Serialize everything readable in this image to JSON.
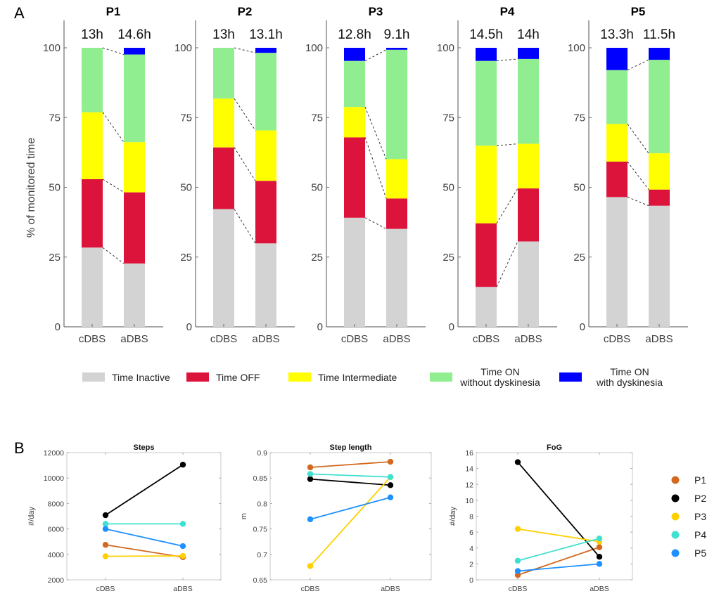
{
  "figure": {
    "panel_a_letter": "A",
    "panel_b_letter": "B"
  },
  "chart_data": [
    {
      "type": "bar",
      "stacked": true,
      "id": "panel-a",
      "ylabel": "% of monitored time",
      "ylim": [
        0,
        100
      ],
      "yticks": [
        0,
        25,
        50,
        75,
        100
      ],
      "categories": [
        "cDBS",
        "aDBS"
      ],
      "segment_order": [
        "Time Inactive",
        "Time OFF",
        "Time Intermediate",
        "Time ON without dyskinesia",
        "Time ON with dyskinesia"
      ],
      "colors": {
        "Time Inactive": "#d3d3d3",
        "Time OFF": "#dc143c",
        "Time Intermediate": "#ffff00",
        "Time ON without dyskinesia": "#90ee90",
        "Time ON with dyskinesia": "#0000ff"
      },
      "legend": [
        {
          "label": "Time Inactive",
          "lines": [
            "Time Inactive"
          ],
          "color": "#d3d3d3"
        },
        {
          "label": "Time OFF",
          "lines": [
            "Time OFF"
          ],
          "color": "#dc143c"
        },
        {
          "label": "Time Intermediate",
          "lines": [
            "Time Intermediate"
          ],
          "color": "#ffff00"
        },
        {
          "label": "Time ON without dyskinesia",
          "lines": [
            "Time ON",
            "without dyskinesia"
          ],
          "color": "#90ee90"
        },
        {
          "label": "Time ON with dyskinesia",
          "lines": [
            "Time ON",
            "with dyskinesia"
          ],
          "color": "#0000ff"
        }
      ],
      "legend_position": "bottom",
      "panels": [
        {
          "title": "P1",
          "hours": [
            "13h",
            "14.6h"
          ],
          "bars": [
            {
              "category": "cDBS",
              "values": [
                28.4,
                24.5,
                24.0,
                23.1,
                0.0
              ]
            },
            {
              "category": "aDBS",
              "values": [
                22.7,
                25.5,
                18.0,
                31.4,
                2.4
              ]
            }
          ]
        },
        {
          "title": "P2",
          "hours": [
            "13h",
            "13.1h"
          ],
          "bars": [
            {
              "category": "cDBS",
              "values": [
                42.2,
                22.1,
                17.5,
                18.2,
                0.0
              ]
            },
            {
              "category": "aDBS",
              "values": [
                29.9,
                22.4,
                18.1,
                27.8,
                1.8
              ]
            }
          ]
        },
        {
          "title": "P3",
          "hours": [
            "12.8h",
            "9.1h"
          ],
          "bars": [
            {
              "category": "cDBS",
              "values": [
                39.1,
                28.8,
                10.9,
                16.5,
                4.7
              ]
            },
            {
              "category": "aDBS",
              "values": [
                35.1,
                10.9,
                14.1,
                39.2,
                0.7
              ]
            }
          ]
        },
        {
          "title": "P4",
          "hours": [
            "14.5h",
            "14h"
          ],
          "bars": [
            {
              "category": "cDBS",
              "values": [
                14.3,
                22.8,
                27.8,
                30.4,
                4.7
              ]
            },
            {
              "category": "aDBS",
              "values": [
                30.6,
                19.0,
                16.0,
                30.4,
                4.0
              ]
            }
          ]
        },
        {
          "title": "P5",
          "hours": [
            "13.3h",
            "11.5h"
          ],
          "bars": [
            {
              "category": "cDBS",
              "values": [
                46.5,
                12.7,
                13.5,
                19.3,
                8.0
              ]
            },
            {
              "category": "aDBS",
              "values": [
                43.4,
                5.8,
                13.0,
                33.5,
                4.3
              ]
            }
          ]
        }
      ]
    },
    {
      "type": "line",
      "id": "steps",
      "title": "Steps",
      "ylabel": "#/day",
      "xlabel": "",
      "categories": [
        "cDBS",
        "aDBS"
      ],
      "ylim": [
        2000,
        12000
      ],
      "yticks": [
        2000,
        4000,
        6000,
        8000,
        10000,
        12000
      ],
      "series": [
        {
          "name": "P1",
          "values": [
            4750,
            3780
          ]
        },
        {
          "name": "P2",
          "values": [
            7080,
            11050
          ]
        },
        {
          "name": "P3",
          "values": [
            3850,
            3880
          ]
        },
        {
          "name": "P4",
          "values": [
            6400,
            6400
          ]
        },
        {
          "name": "P5",
          "values": [
            6000,
            4650
          ]
        }
      ]
    },
    {
      "type": "line",
      "id": "step-length",
      "title": "Step length",
      "ylabel": "m",
      "xlabel": "",
      "categories": [
        "cDBS",
        "aDBS"
      ],
      "ylim": [
        0.65,
        0.9
      ],
      "yticks": [
        0.65,
        0.7,
        0.75,
        0.8,
        0.85,
        0.9
      ],
      "series": [
        {
          "name": "P1",
          "values": [
            0.871,
            0.882
          ]
        },
        {
          "name": "P2",
          "values": [
            0.848,
            0.836
          ]
        },
        {
          "name": "P3",
          "values": [
            0.677,
            0.852
          ]
        },
        {
          "name": "P4",
          "values": [
            0.858,
            0.852
          ]
        },
        {
          "name": "P5",
          "values": [
            0.769,
            0.812
          ]
        }
      ]
    },
    {
      "type": "line",
      "id": "fog",
      "title": "FoG",
      "ylabel": "#/day",
      "xlabel": "",
      "categories": [
        "cDBS",
        "aDBS"
      ],
      "ylim": [
        0,
        16
      ],
      "yticks": [
        0,
        2,
        4,
        6,
        8,
        10,
        12,
        14,
        16
      ],
      "series": [
        {
          "name": "P1",
          "values": [
            0.6,
            4.1
          ]
        },
        {
          "name": "P2",
          "values": [
            14.8,
            2.9
          ]
        },
        {
          "name": "P3",
          "values": [
            6.4,
            4.8
          ]
        },
        {
          "name": "P4",
          "values": [
            2.4,
            5.2
          ]
        },
        {
          "name": "P5",
          "values": [
            1.1,
            2.0
          ]
        }
      ]
    }
  ],
  "panel_b_legend": {
    "position": "right",
    "entries": [
      {
        "name": "P1",
        "color": "#d2691e"
      },
      {
        "name": "P2",
        "color": "#000000"
      },
      {
        "name": "P3",
        "color": "#ffd000"
      },
      {
        "name": "P4",
        "color": "#40e0d0"
      },
      {
        "name": "P5",
        "color": "#1e90ff"
      }
    ]
  }
}
